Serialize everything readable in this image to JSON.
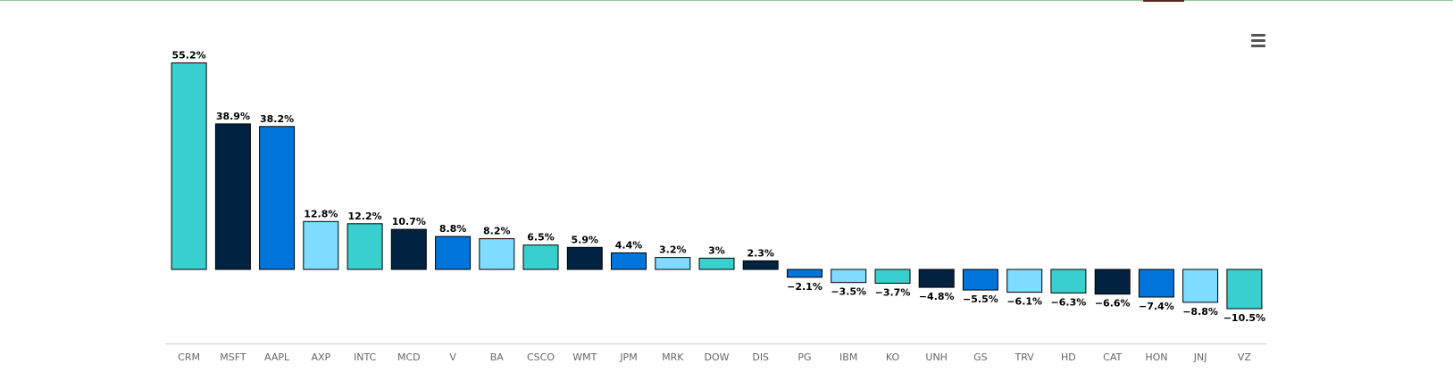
{
  "chart_data": {
    "type": "bar",
    "categories": [
      "CRM",
      "MSFT",
      "AAPL",
      "AXP",
      "INTC",
      "MCD",
      "V",
      "BA",
      "CSCO",
      "WMT",
      "JPM",
      "MRK",
      "DOW",
      "DIS",
      "PG",
      "IBM",
      "KO",
      "UNH",
      "GS",
      "TRV",
      "HD",
      "CAT",
      "HON",
      "JNJ",
      "VZ"
    ],
    "values": [
      55.2,
      38.9,
      38.2,
      12.8,
      12.2,
      10.7,
      8.8,
      8.2,
      6.5,
      5.9,
      4.4,
      3.2,
      3,
      2.3,
      -2.1,
      -3.5,
      -3.7,
      -4.8,
      -5.5,
      -6.1,
      -6.3,
      -6.6,
      -7.4,
      -8.8,
      -10.5
    ],
    "data_labels": [
      "55.2%",
      "38.9%",
      "38.2%",
      "12.8%",
      "12.2%",
      "10.7%",
      "8.8%",
      "8.2%",
      "6.5%",
      "5.9%",
      "4.4%",
      "3.2%",
      "3%",
      "2.3%",
      "−2.1%",
      "−3.5%",
      "−3.7%",
      "−4.8%",
      "−5.5%",
      "−6.1%",
      "−6.3%",
      "−6.6%",
      "−7.4%",
      "−8.8%",
      "−10.5%"
    ],
    "palette": [
      "#3acfcf",
      "#022242",
      "#0074d9",
      "#7fdbff"
    ],
    "ylim": [
      -10.5,
      55.2
    ],
    "title": "",
    "xlabel": "",
    "ylabel": "",
    "grid": false,
    "legend": "none"
  },
  "colors": {
    "top_line": "#8fc79b",
    "top_accent": "#5b2a1e",
    "axis_line": "#cccccc",
    "tick_label": "#666666",
    "data_label": "#000000",
    "bar_border": "#000000",
    "menu_icon": "#555555"
  },
  "toolbar": {
    "menu_icon": "hamburger-menu-icon"
  }
}
